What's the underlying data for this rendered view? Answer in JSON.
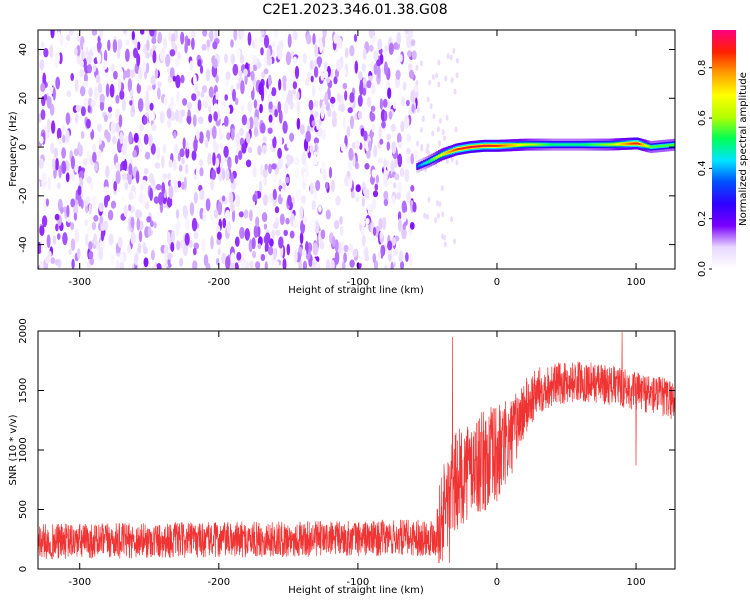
{
  "title": "C2E1.2023.346.01.38.G08",
  "chart_data": [
    {
      "type": "heatmap",
      "title": "C2E1.2023.346.01.38.G08",
      "xlabel": "Height of straight line (km)",
      "ylabel": "Frequency (Hz)",
      "xlim": [
        -330,
        128
      ],
      "ylim": [
        -50,
        48
      ],
      "x_ticks": [
        -300,
        -200,
        -100,
        0,
        100
      ],
      "y_ticks": [
        -40,
        -20,
        0,
        20,
        40
      ],
      "colorbar": {
        "label": "Normalized spectral amplitude",
        "range": [
          0.0,
          0.95
        ],
        "ticks": [
          0.0,
          0.2,
          0.4,
          0.6,
          0.8
        ],
        "colormap": [
          "#ffffff",
          "#e9d8ff",
          "#7a00ff",
          "#2e00ff",
          "#0050ff",
          "#00e5ff",
          "#00ff55",
          "#b5ff00",
          "#ffff00",
          "#ffa000",
          "#ff2000",
          "#ff0080"
        ]
      },
      "noise_region": {
        "x_range": [
          -330,
          -58
        ],
        "freq_range": [
          -50,
          48
        ],
        "typical_amplitude": 0.15
      },
      "signal_track": {
        "x": [
          -58,
          -50,
          -40,
          -30,
          -20,
          -10,
          0,
          20,
          40,
          60,
          80,
          100,
          110,
          128
        ],
        "frequency": [
          -8,
          -6,
          -3,
          -1,
          0,
          0.5,
          0.5,
          1,
          1,
          1,
          1,
          1.5,
          0,
          1
        ],
        "amplitude": [
          0.35,
          0.5,
          0.7,
          0.85,
          0.9,
          0.9,
          0.85,
          0.65,
          0.5,
          0.5,
          0.6,
          0.9,
          0.55,
          0.55
        ]
      },
      "grid": false
    },
    {
      "type": "line",
      "xlabel": "Height of straight line (km)",
      "ylabel": "SNR (10 * v/v)",
      "xlim": [
        -330,
        128
      ],
      "ylim": [
        0,
        2000
      ],
      "x_ticks": [
        -300,
        -200,
        -100,
        0,
        100
      ],
      "y_ticks": [
        0,
        500,
        1000,
        1500,
        2000
      ],
      "color": "#f03434",
      "envelope": {
        "x": [
          -330,
          -250,
          -150,
          -80,
          -45,
          -40,
          -35,
          -30,
          -20,
          -10,
          0,
          10,
          20,
          30,
          40,
          60,
          80,
          100,
          128
        ],
        "mean": [
          230,
          240,
          250,
          260,
          270,
          420,
          600,
          720,
          850,
          900,
          950,
          1100,
          1350,
          1500,
          1550,
          1580,
          1550,
          1500,
          1420
        ],
        "spread": [
          150,
          150,
          150,
          150,
          160,
          400,
          450,
          420,
          420,
          430,
          450,
          330,
          250,
          200,
          180,
          170,
          170,
          170,
          170
        ]
      },
      "peaks": [
        {
          "x": -32,
          "y": 1950
        },
        {
          "x": -34,
          "y": 50
        },
        {
          "x": 90,
          "y": 1990
        },
        {
          "x": 100,
          "y": 870
        }
      ]
    }
  ]
}
